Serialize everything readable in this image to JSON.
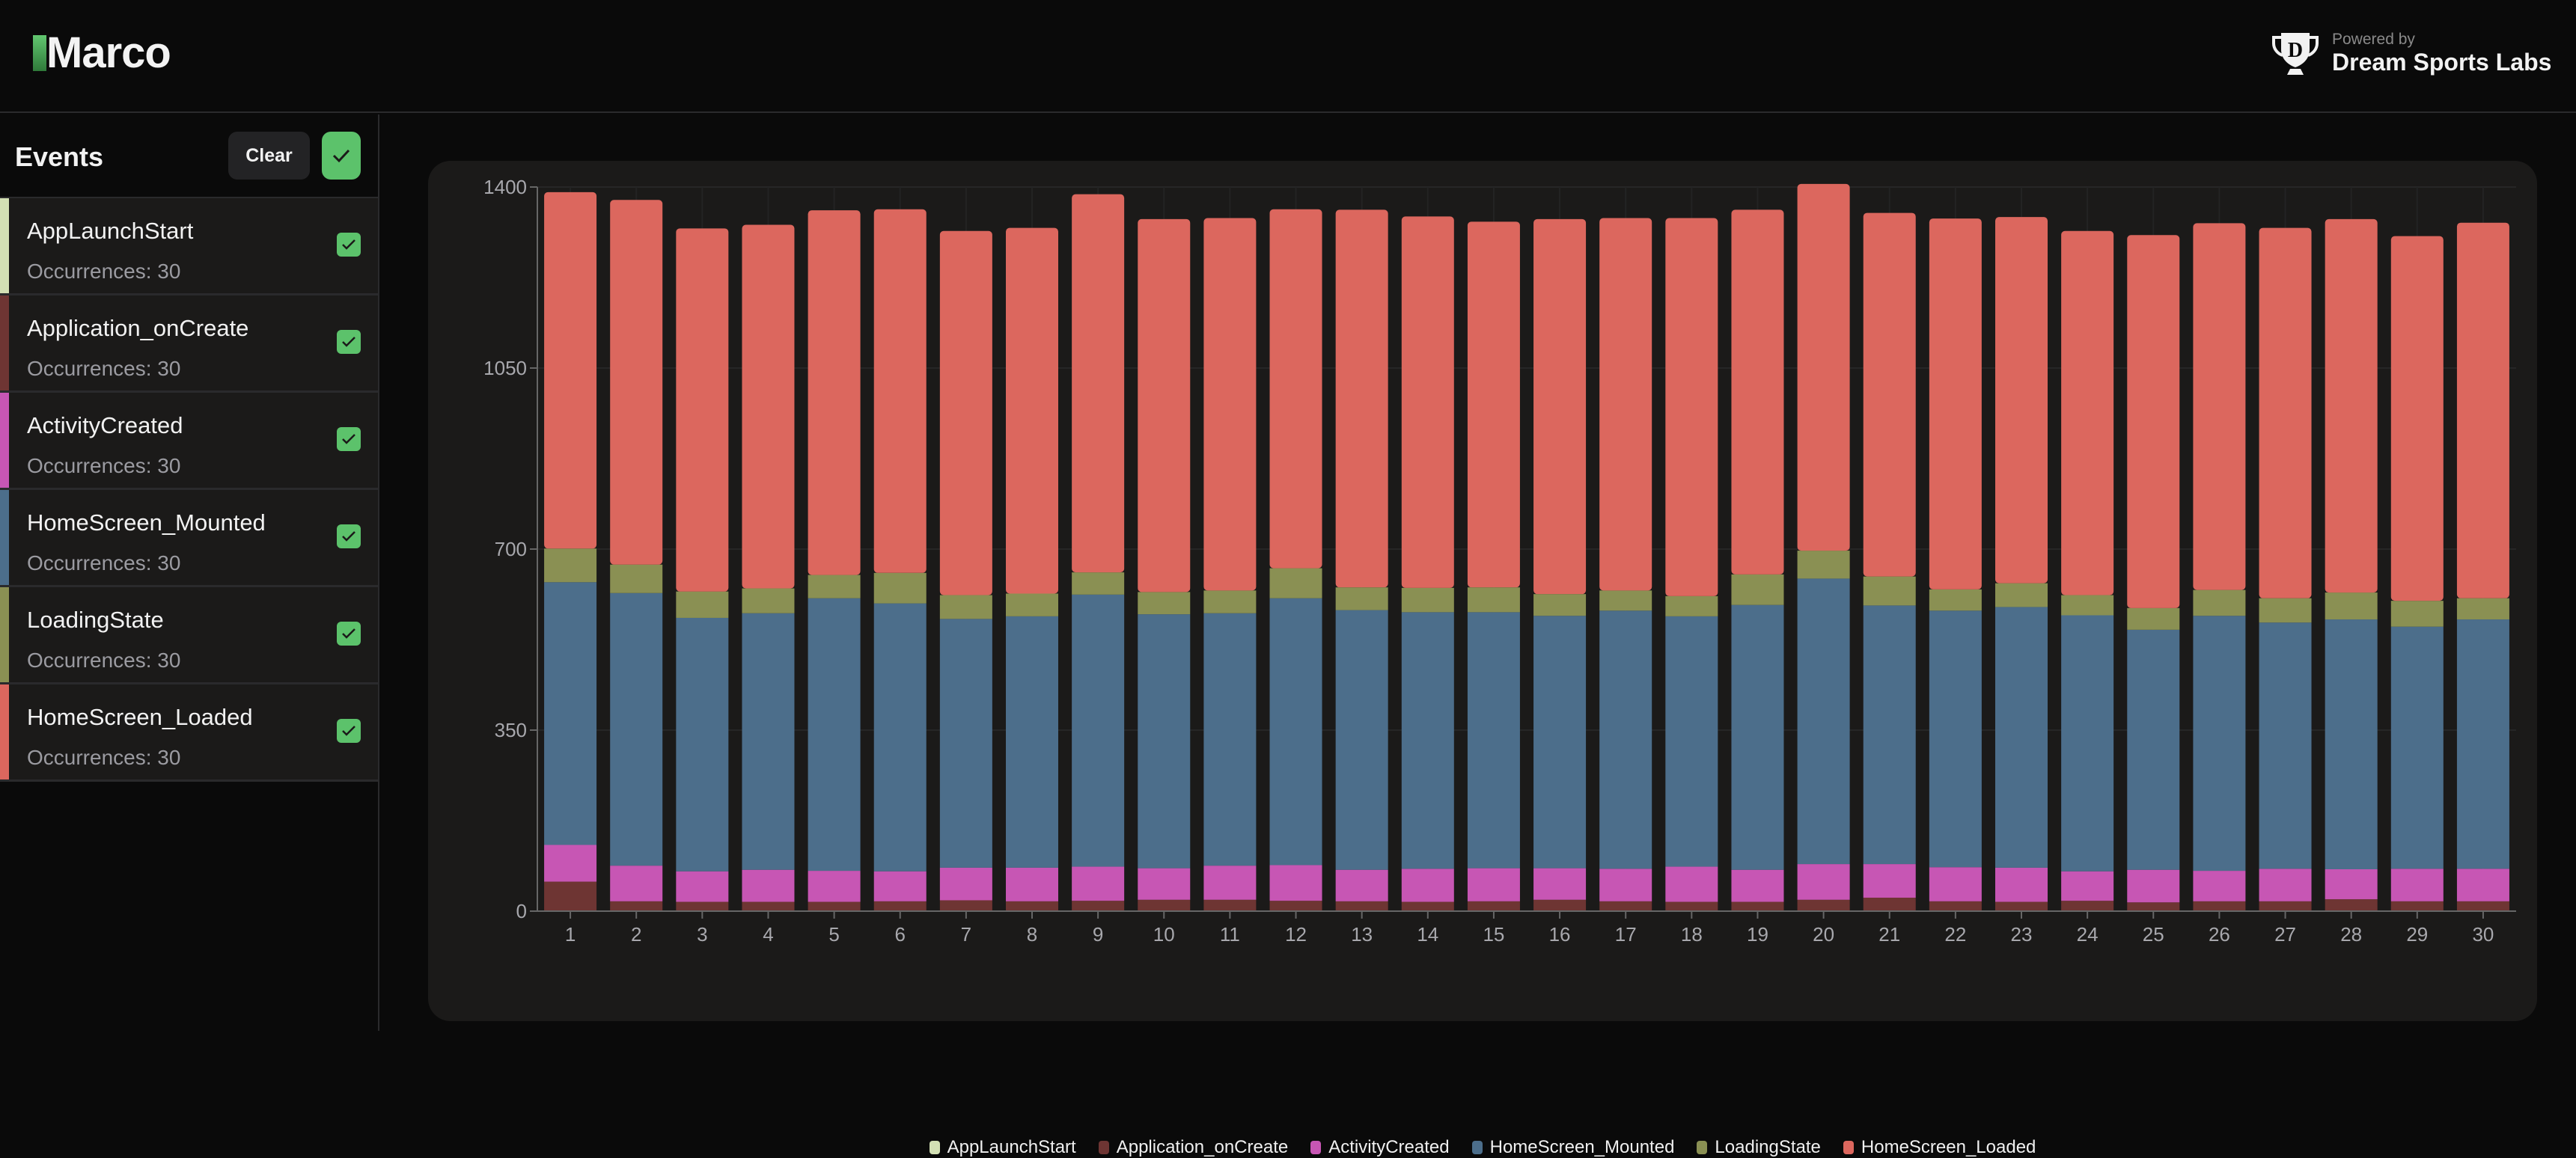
{
  "header": {
    "logo": "Marco",
    "powered_by": "Powered by",
    "company": "Dream Sports Labs"
  },
  "sidebar": {
    "title": "Events",
    "clear_label": "Clear",
    "items": [
      {
        "name": "AppLaunchStart",
        "occurrences": "Occurrences: 30",
        "color": "#d3e0b4",
        "checked": true
      },
      {
        "name": "Application_onCreate",
        "occurrences": "Occurrences: 30",
        "color": "#6e3533",
        "checked": true
      },
      {
        "name": "ActivityCreated",
        "occurrences": "Occurrences: 30",
        "color": "#c756b4",
        "checked": true
      },
      {
        "name": "HomeScreen_Mounted",
        "occurrences": "Occurrences: 30",
        "color": "#4c6e8b",
        "checked": true
      },
      {
        "name": "LoadingState",
        "occurrences": "Occurrences: 30",
        "color": "#8a9053",
        "checked": true
      },
      {
        "name": "HomeScreen_Loaded",
        "occurrences": "Occurrences: 30",
        "color": "#dc675e",
        "checked": true
      }
    ]
  },
  "chart_data": {
    "type": "bar",
    "stacked": true,
    "grid": true,
    "legend": "bottom",
    "ylim": [
      0,
      1400
    ],
    "yticks": [
      "0",
      "350",
      "700",
      "1050",
      "1400"
    ],
    "categories": [
      "1",
      "2",
      "3",
      "4",
      "5",
      "6",
      "7",
      "8",
      "9",
      "10",
      "11",
      "12",
      "13",
      "14",
      "15",
      "16",
      "17",
      "18",
      "19",
      "20",
      "21",
      "22",
      "23",
      "24",
      "25",
      "26",
      "27",
      "28",
      "29",
      "30"
    ],
    "series": [
      {
        "name": "AppLaunchStart",
        "color": "#d3e0b4",
        "values": [
          1,
          1,
          1,
          1,
          1,
          1,
          1,
          1,
          1,
          1,
          1,
          1,
          1,
          1,
          1,
          1,
          1,
          1,
          1,
          1,
          1,
          1,
          1,
          1,
          1,
          1,
          1,
          1,
          1,
          1
        ]
      },
      {
        "name": "Application_onCreate",
        "color": "#6e3533",
        "values": [
          56,
          18,
          17,
          17,
          17,
          18,
          20,
          18,
          19,
          21,
          21,
          19,
          18,
          17,
          18,
          21,
          18,
          17,
          17,
          21,
          25,
          18,
          17,
          19,
          16,
          18,
          18,
          22,
          18,
          18
        ]
      },
      {
        "name": "ActivityCreated",
        "color": "#c756b4",
        "values": [
          71,
          69,
          59,
          62,
          60,
          58,
          63,
          65,
          66,
          61,
          66,
          69,
          61,
          64,
          64,
          61,
          63,
          68,
          62,
          69,
          65,
          66,
          66,
          57,
          63,
          59,
          63,
          58,
          63,
          63
        ]
      },
      {
        "name": "HomeScreen_Mounted",
        "color": "#4c6e8b",
        "values": [
          508,
          527,
          490,
          496,
          527,
          518,
          481,
          486,
          526,
          491,
          488,
          516,
          502,
          496,
          495,
          488,
          499,
          484,
          512,
          552,
          500,
          496,
          504,
          495,
          464,
          493,
          476,
          483,
          468,
          482
        ]
      },
      {
        "name": "LoadingState",
        "color": "#8a9053",
        "values": [
          65,
          55,
          51,
          48,
          45,
          59,
          46,
          44,
          43,
          43,
          44,
          58,
          44,
          47,
          48,
          42,
          39,
          39,
          59,
          54,
          56,
          41,
          46,
          39,
          42,
          50,
          47,
          52,
          50,
          41
        ]
      },
      {
        "name": "HomeScreen_Loaded",
        "color": "#dc675e",
        "values": [
          689,
          705,
          702,
          703,
          705,
          703,
          704,
          707,
          731,
          721,
          720,
          694,
          730,
          718,
          707,
          725,
          720,
          731,
          705,
          709,
          703,
          717,
          708,
          704,
          721,
          709,
          716,
          722,
          705,
          726
        ]
      }
    ]
  }
}
